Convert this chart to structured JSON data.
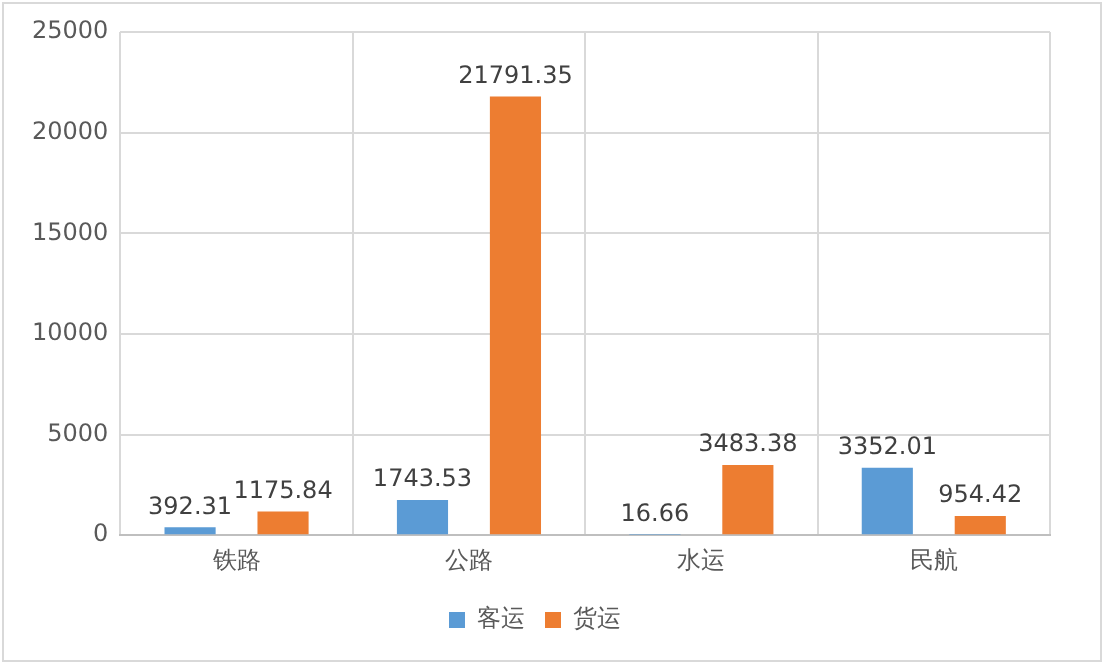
{
  "chart_data": {
    "type": "bar",
    "categories": [
      "铁路",
      "公路",
      "水运",
      "民航"
    ],
    "series": [
      {
        "name": "客运",
        "color": "#5b9bd5",
        "values": [
          392.31,
          1743.53,
          16.66,
          3352.01
        ]
      },
      {
        "name": "货运",
        "color": "#ed7d31",
        "values": [
          1175.84,
          21791.35,
          3483.38,
          954.42
        ]
      }
    ],
    "ylim": [
      0,
      25000
    ],
    "yticks": [
      0,
      5000,
      10000,
      15000,
      20000,
      25000
    ],
    "grid": true,
    "legend": "bottom",
    "data_labels": true
  }
}
